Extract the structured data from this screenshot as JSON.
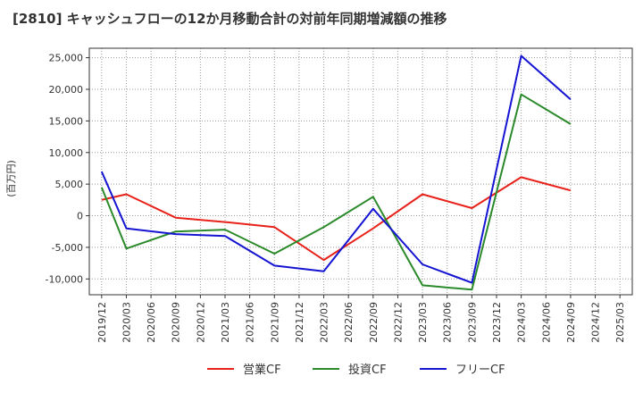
{
  "chart_data": {
    "type": "line",
    "title": "[2810]  キャッシュフローの12か月移動合計の対前年同期増減額の推移",
    "ylabel": "(百万円)",
    "xlabel": "",
    "ylim": [
      -12500,
      26500
    ],
    "yticks": [
      -10000,
      -5000,
      0,
      5000,
      10000,
      15000,
      20000,
      25000
    ],
    "ytick_labels": [
      "-10,000",
      "-5,000",
      "0",
      "5,000",
      "10,000",
      "15,000",
      "20,000",
      "25,000"
    ],
    "categories": [
      "2019/12",
      "2020/03",
      "2020/06",
      "2020/09",
      "2020/12",
      "2021/03",
      "2021/06",
      "2021/09",
      "2021/12",
      "2022/03",
      "2022/06",
      "2022/09",
      "2022/12",
      "2023/03",
      "2023/06",
      "2023/09",
      "2023/12",
      "2024/03",
      "2024/06",
      "2024/09",
      "2024/12",
      "2025/03"
    ],
    "grid": true,
    "legend_position": "bottom",
    "series": [
      {
        "name": "営業CF",
        "color": "#e8221a",
        "values": [
          2500,
          3400,
          null,
          -300,
          null,
          -1000,
          null,
          -1800,
          null,
          -7000,
          null,
          -2000,
          null,
          3400,
          null,
          1200,
          null,
          6100,
          null,
          4000,
          null,
          null
        ]
      },
      {
        "name": "投資CF",
        "color": "#2a8a2a",
        "values": [
          4500,
          -5200,
          null,
          -2500,
          null,
          -2200,
          null,
          -6000,
          null,
          -1800,
          null,
          3000,
          null,
          -11000,
          null,
          -11700,
          null,
          19200,
          null,
          14500,
          null,
          null
        ]
      },
      {
        "name": "フリーCF",
        "color": "#1414d2",
        "values": [
          7000,
          -2000,
          null,
          -2900,
          null,
          -3200,
          null,
          -7900,
          null,
          -8800,
          null,
          1100,
          null,
          -7700,
          null,
          -10600,
          null,
          25300,
          null,
          18400,
          null,
          null
        ]
      }
    ]
  }
}
